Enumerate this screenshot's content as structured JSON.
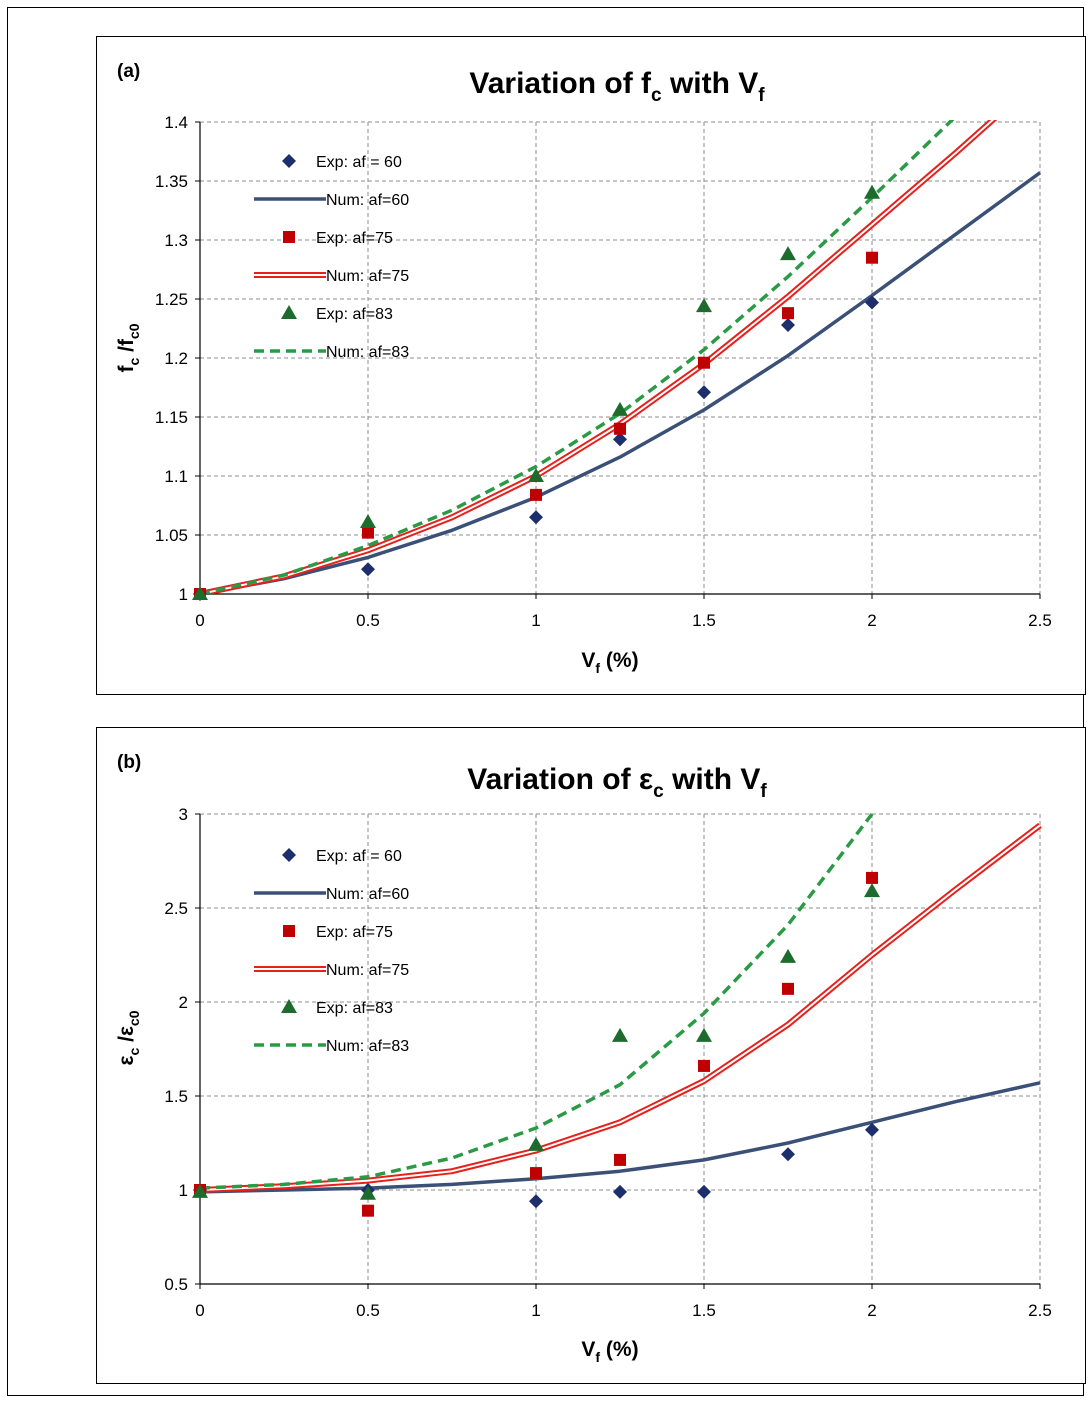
{
  "colors": {
    "exp60": "#1c2e6b",
    "num60": "#3b5077",
    "exp75": "#c00000",
    "num75": "#e8201c",
    "exp83": "#1e6b2e",
    "num83": "#2a9a45",
    "grid": "#8c8c8c"
  },
  "chart_data": [
    {
      "type": "scatter",
      "panel_label": "(a)",
      "title": "Variation of fc with Vf",
      "title_parts": {
        "a": "Variation of f",
        "b": "c",
        "c": " with V",
        "d": "f"
      },
      "xlabel": "Vf (%)",
      "xlabel_parts": {
        "a": "V",
        "b": "f",
        "c": " (%)"
      },
      "ylabel": "fc /fc0",
      "ylabel_parts": {
        "a": "f",
        "b": "c",
        "c": " /f",
        "d": "c0"
      },
      "xlim": [
        0,
        2.5
      ],
      "ylim": [
        1,
        1.4
      ],
      "xticks": [
        0,
        0.5,
        1,
        1.5,
        2,
        2.5
      ],
      "xtick_labels": [
        "0",
        "0.5",
        "1",
        "1.5",
        "2",
        "2.5"
      ],
      "yticks": [
        1,
        1.05,
        1.1,
        1.15,
        1.2,
        1.25,
        1.3,
        1.35,
        1.4
      ],
      "ytick_labels": [
        "1",
        "1.05",
        "1.1",
        "1.15",
        "1.2",
        "1.25",
        "1.3",
        "1.35",
        "1.4"
      ],
      "grid": true,
      "legend_position": "top-left",
      "series": [
        {
          "name": "Exp: af = 60",
          "kind": "marker",
          "marker": "diamond",
          "color_key": "exp60",
          "x": [
            0,
            0.5,
            1,
            1.25,
            1.5,
            1.75,
            2
          ],
          "y": [
            1.0,
            1.021,
            1.065,
            1.131,
            1.171,
            1.228,
            1.247
          ]
        },
        {
          "name": "Num: af=60",
          "kind": "line",
          "style": "solid",
          "color_key": "num60",
          "x": [
            0,
            0.25,
            0.5,
            0.75,
            1,
            1.25,
            1.5,
            1.75,
            2,
            2.25,
            2.5
          ],
          "y": [
            1.0,
            1.013,
            1.031,
            1.054,
            1.082,
            1.116,
            1.156,
            1.202,
            1.253,
            1.305,
            1.357
          ]
        },
        {
          "name": "Exp: af=75",
          "kind": "marker",
          "marker": "square",
          "color_key": "exp75",
          "x": [
            0,
            0.5,
            1,
            1.25,
            1.5,
            1.75,
            2
          ],
          "y": [
            1.0,
            1.052,
            1.084,
            1.14,
            1.196,
            1.238,
            1.285
          ]
        },
        {
          "name": "Num: af=75",
          "kind": "line",
          "style": "double",
          "color_key": "num75",
          "x": [
            0,
            0.25,
            0.5,
            0.75,
            1,
            1.25,
            1.5,
            1.75,
            2,
            2.25,
            2.4
          ],
          "y": [
            1.0,
            1.015,
            1.037,
            1.065,
            1.1,
            1.144,
            1.195,
            1.252,
            1.313,
            1.374,
            1.412
          ]
        },
        {
          "name": "Exp: af=83",
          "kind": "marker",
          "marker": "triangle",
          "color_key": "exp83",
          "x": [
            0,
            0.5,
            1,
            1.25,
            1.5,
            1.75,
            2
          ],
          "y": [
            1.0,
            1.061,
            1.1,
            1.156,
            1.244,
            1.288,
            1.34
          ]
        },
        {
          "name": "Num: af=83",
          "kind": "line",
          "style": "dashed",
          "color_key": "num83",
          "x": [
            0,
            0.25,
            0.5,
            0.75,
            1,
            1.25,
            1.5,
            1.75,
            2,
            2.25
          ],
          "y": [
            1.0,
            1.016,
            1.041,
            1.071,
            1.108,
            1.153,
            1.207,
            1.269,
            1.336,
            1.405
          ]
        }
      ]
    },
    {
      "type": "scatter",
      "panel_label": "(b)",
      "title": "Variation of εc with Vf",
      "title_parts": {
        "a": "Variation of ε",
        "b": "c",
        "c": " with V",
        "d": "f"
      },
      "xlabel": "Vf (%)",
      "xlabel_parts": {
        "a": "V",
        "b": "f",
        "c": " (%)"
      },
      "ylabel": "εc /εc0",
      "ylabel_parts": {
        "a": "ε",
        "b": "c",
        "c": " /ε",
        "d": "c0"
      },
      "xlim": [
        0,
        2.5
      ],
      "ylim": [
        0.5,
        3
      ],
      "xticks": [
        0,
        0.5,
        1,
        1.5,
        2,
        2.5
      ],
      "xtick_labels": [
        "0",
        "0.5",
        "1",
        "1.5",
        "2",
        "2.5"
      ],
      "yticks": [
        0.5,
        1,
        1.5,
        2,
        2.5,
        3
      ],
      "ytick_labels": [
        "0.5",
        "1",
        "1.5",
        "2",
        "2.5",
        "3"
      ],
      "grid": true,
      "legend_position": "top-left",
      "series": [
        {
          "name": "Exp: af = 60",
          "kind": "marker",
          "marker": "diamond",
          "color_key": "exp60",
          "x": [
            0,
            0.5,
            1,
            1.25,
            1.5,
            1.75,
            2
          ],
          "y": [
            1.0,
            1.0,
            0.94,
            0.99,
            0.99,
            1.19,
            1.32
          ]
        },
        {
          "name": "Num: af=60",
          "kind": "line",
          "style": "solid",
          "color_key": "num60",
          "x": [
            0,
            0.25,
            0.5,
            0.75,
            1,
            1.25,
            1.5,
            1.75,
            2,
            2.25,
            2.5
          ],
          "y": [
            0.99,
            1.0,
            1.01,
            1.03,
            1.06,
            1.1,
            1.16,
            1.25,
            1.36,
            1.47,
            1.57
          ]
        },
        {
          "name": "Exp: af=75",
          "kind": "marker",
          "marker": "square",
          "color_key": "exp75",
          "x": [
            0,
            0.5,
            1,
            1.25,
            1.5,
            1.75,
            2
          ],
          "y": [
            1.0,
            0.89,
            1.09,
            1.16,
            1.66,
            2.07,
            2.66
          ]
        },
        {
          "name": "Num: af=75",
          "kind": "line",
          "style": "double",
          "color_key": "num75",
          "x": [
            0,
            0.25,
            0.5,
            0.75,
            1,
            1.25,
            1.5,
            1.75,
            2,
            2.25,
            2.5
          ],
          "y": [
            1.0,
            1.02,
            1.05,
            1.1,
            1.21,
            1.36,
            1.58,
            1.88,
            2.25,
            2.6,
            2.94
          ]
        },
        {
          "name": "Exp: af=83",
          "kind": "marker",
          "marker": "triangle",
          "color_key": "exp83",
          "x": [
            0,
            0.5,
            1,
            1.25,
            1.5,
            1.75,
            2
          ],
          "y": [
            0.99,
            0.98,
            1.24,
            1.82,
            1.82,
            2.24,
            2.59
          ]
        },
        {
          "name": "Num: af=83",
          "kind": "line",
          "style": "dashed",
          "color_key": "num83",
          "x": [
            0,
            0.25,
            0.5,
            0.75,
            1,
            1.25,
            1.5,
            1.75,
            2
          ],
          "y": [
            1.01,
            1.03,
            1.07,
            1.17,
            1.33,
            1.56,
            1.94,
            2.41,
            3.0
          ]
        }
      ]
    }
  ]
}
